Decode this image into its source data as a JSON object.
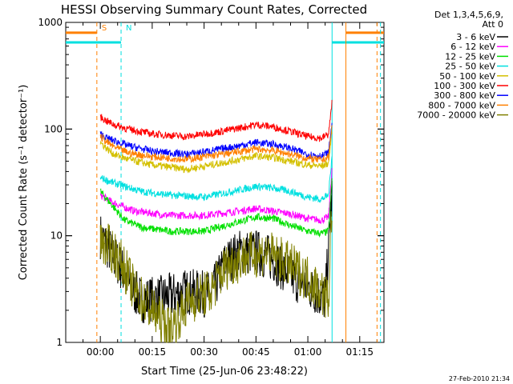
{
  "chart_data": {
    "type": "line",
    "title": "HESSI Observing Summary Count Rates, Corrected",
    "xlabel": "Start Time (25-Jun-06 23:48:22)",
    "ylabel": "Corrected Count Rate (s⁻¹ detector⁻¹)",
    "ylim": [
      1,
      1000
    ],
    "yscale": "log",
    "xlim_minutes": [
      -10,
      82
    ],
    "x_ticks": [
      {
        "label": "00:00",
        "t": 0
      },
      {
        "label": "00:15",
        "t": 15
      },
      {
        "label": "00:30",
        "t": 30
      },
      {
        "label": "00:45",
        "t": 45
      },
      {
        "label": "01:00",
        "t": 60
      },
      {
        "label": "01:15",
        "t": 75
      }
    ],
    "y_ticks": [
      {
        "label": "1",
        "v": 1
      },
      {
        "label": "10",
        "v": 10
      },
      {
        "label": "100",
        "v": 100
      },
      {
        "label": "1000",
        "v": 1000
      }
    ],
    "legend": {
      "header": [
        "Det 1,3,4,5,6,9,",
        "Att 0"
      ],
      "placement": "right"
    },
    "series": [
      {
        "name": "3 - 6 keV",
        "color": "#000000",
        "x": [
          0,
          6,
          9,
          12,
          18,
          25,
          32,
          36,
          40,
          45,
          50,
          56,
          62,
          65,
          67
        ],
        "y": [
          10,
          5,
          3.2,
          2.5,
          2.6,
          3,
          2.8,
          5.5,
          7,
          7,
          6,
          4,
          3,
          2.5,
          25
        ]
      },
      {
        "name": "6 - 12 keV",
        "color": "#ff00ff",
        "x": [
          0,
          3,
          6,
          10,
          20,
          30,
          40,
          45,
          50,
          55,
          60,
          64,
          66,
          67
        ],
        "y": [
          24,
          21,
          19,
          17,
          15.5,
          15.5,
          17,
          18,
          17,
          16,
          14.5,
          14,
          15,
          45
        ]
      },
      {
        "name": "12 - 25 keV",
        "color": "#00e000",
        "x": [
          0,
          3,
          7,
          12,
          20,
          30,
          38,
          45,
          50,
          55,
          60,
          64,
          66,
          67
        ],
        "y": [
          26,
          20,
          14,
          12,
          11,
          11,
          13,
          15,
          14.5,
          12.5,
          11,
          10.5,
          11,
          35
        ]
      },
      {
        "name": "25 - 50 keV",
        "color": "#00e0e0",
        "x": [
          0,
          3,
          7,
          12,
          20,
          30,
          38,
          45,
          50,
          55,
          60,
          64,
          66,
          67
        ],
        "y": [
          35,
          32,
          29,
          26,
          24,
          23,
          26,
          29,
          28,
          26,
          23,
          22,
          24,
          60
        ]
      },
      {
        "name": "50 - 100 keV",
        "color": "#d4c000",
        "x": [
          0,
          2,
          4,
          8,
          15,
          25,
          35,
          45,
          50,
          55,
          60,
          64,
          66,
          67
        ],
        "y": [
          75,
          65,
          58,
          52,
          46,
          42,
          48,
          56,
          54,
          50,
          46,
          45,
          48,
          100
        ]
      },
      {
        "name": "100 - 300 keV",
        "color": "#ff0000",
        "x": [
          0,
          2,
          4,
          8,
          15,
          25,
          35,
          45,
          50,
          55,
          60,
          64,
          66,
          67
        ],
        "y": [
          130,
          118,
          110,
          100,
          90,
          85,
          95,
          110,
          105,
          95,
          85,
          82,
          90,
          180
        ]
      },
      {
        "name": "300 - 800 keV",
        "color": "#0000ff",
        "x": [
          0,
          2,
          4,
          8,
          15,
          25,
          35,
          45,
          50,
          55,
          60,
          64,
          66,
          67
        ],
        "y": [
          90,
          82,
          78,
          70,
          62,
          58,
          65,
          75,
          72,
          66,
          58,
          56,
          60,
          120
        ]
      },
      {
        "name": "800 - 7000 keV",
        "color": "#ff8000",
        "x": [
          0,
          2,
          4,
          8,
          15,
          25,
          35,
          45,
          50,
          55,
          60,
          64,
          66,
          67
        ],
        "y": [
          85,
          75,
          68,
          60,
          55,
          52,
          58,
          65,
          63,
          58,
          53,
          51,
          55,
          110
        ]
      },
      {
        "name": "7000 - 20000 keV",
        "color": "#808000",
        "x": [
          0,
          4,
          7,
          10,
          15,
          20,
          26,
          32,
          36,
          42,
          48,
          54,
          60,
          64,
          66,
          67
        ],
        "y": [
          9,
          7,
          5,
          3,
          2,
          1.3,
          2.5,
          3,
          5,
          6.5,
          7,
          5.5,
          4,
          3,
          2.5,
          22
        ]
      }
    ],
    "markers": [
      {
        "label": "S",
        "color": "#ff8000",
        "t": -1
      },
      {
        "label": "N",
        "color": "#00e0e0",
        "t": 6
      }
    ],
    "bars": [
      {
        "color": "#ff8000",
        "from": -10,
        "to": -1,
        "level": 800
      },
      {
        "color": "#00e0e0",
        "from": -10,
        "to": 6,
        "level": 650
      },
      {
        "color": "#ff8000",
        "from": 71,
        "to": 82,
        "level": 800
      },
      {
        "color": "#00e0e0",
        "from": 67,
        "to": 82,
        "level": 650
      }
    ],
    "verticals": [
      {
        "color": "#ff8000",
        "t": -1,
        "dashed": true
      },
      {
        "color": "#00e0e0",
        "t": 6,
        "dashed": true
      },
      {
        "color": "#00e0e0",
        "t": 67,
        "dashed": false
      },
      {
        "color": "#ff8000",
        "t": 71,
        "dashed": false
      },
      {
        "color": "#ff8000",
        "t": 80,
        "dashed": true
      },
      {
        "color": "#00e0e0",
        "t": 81,
        "dashed": true
      }
    ],
    "timestamp": "27-Feb-2010 21:34"
  }
}
